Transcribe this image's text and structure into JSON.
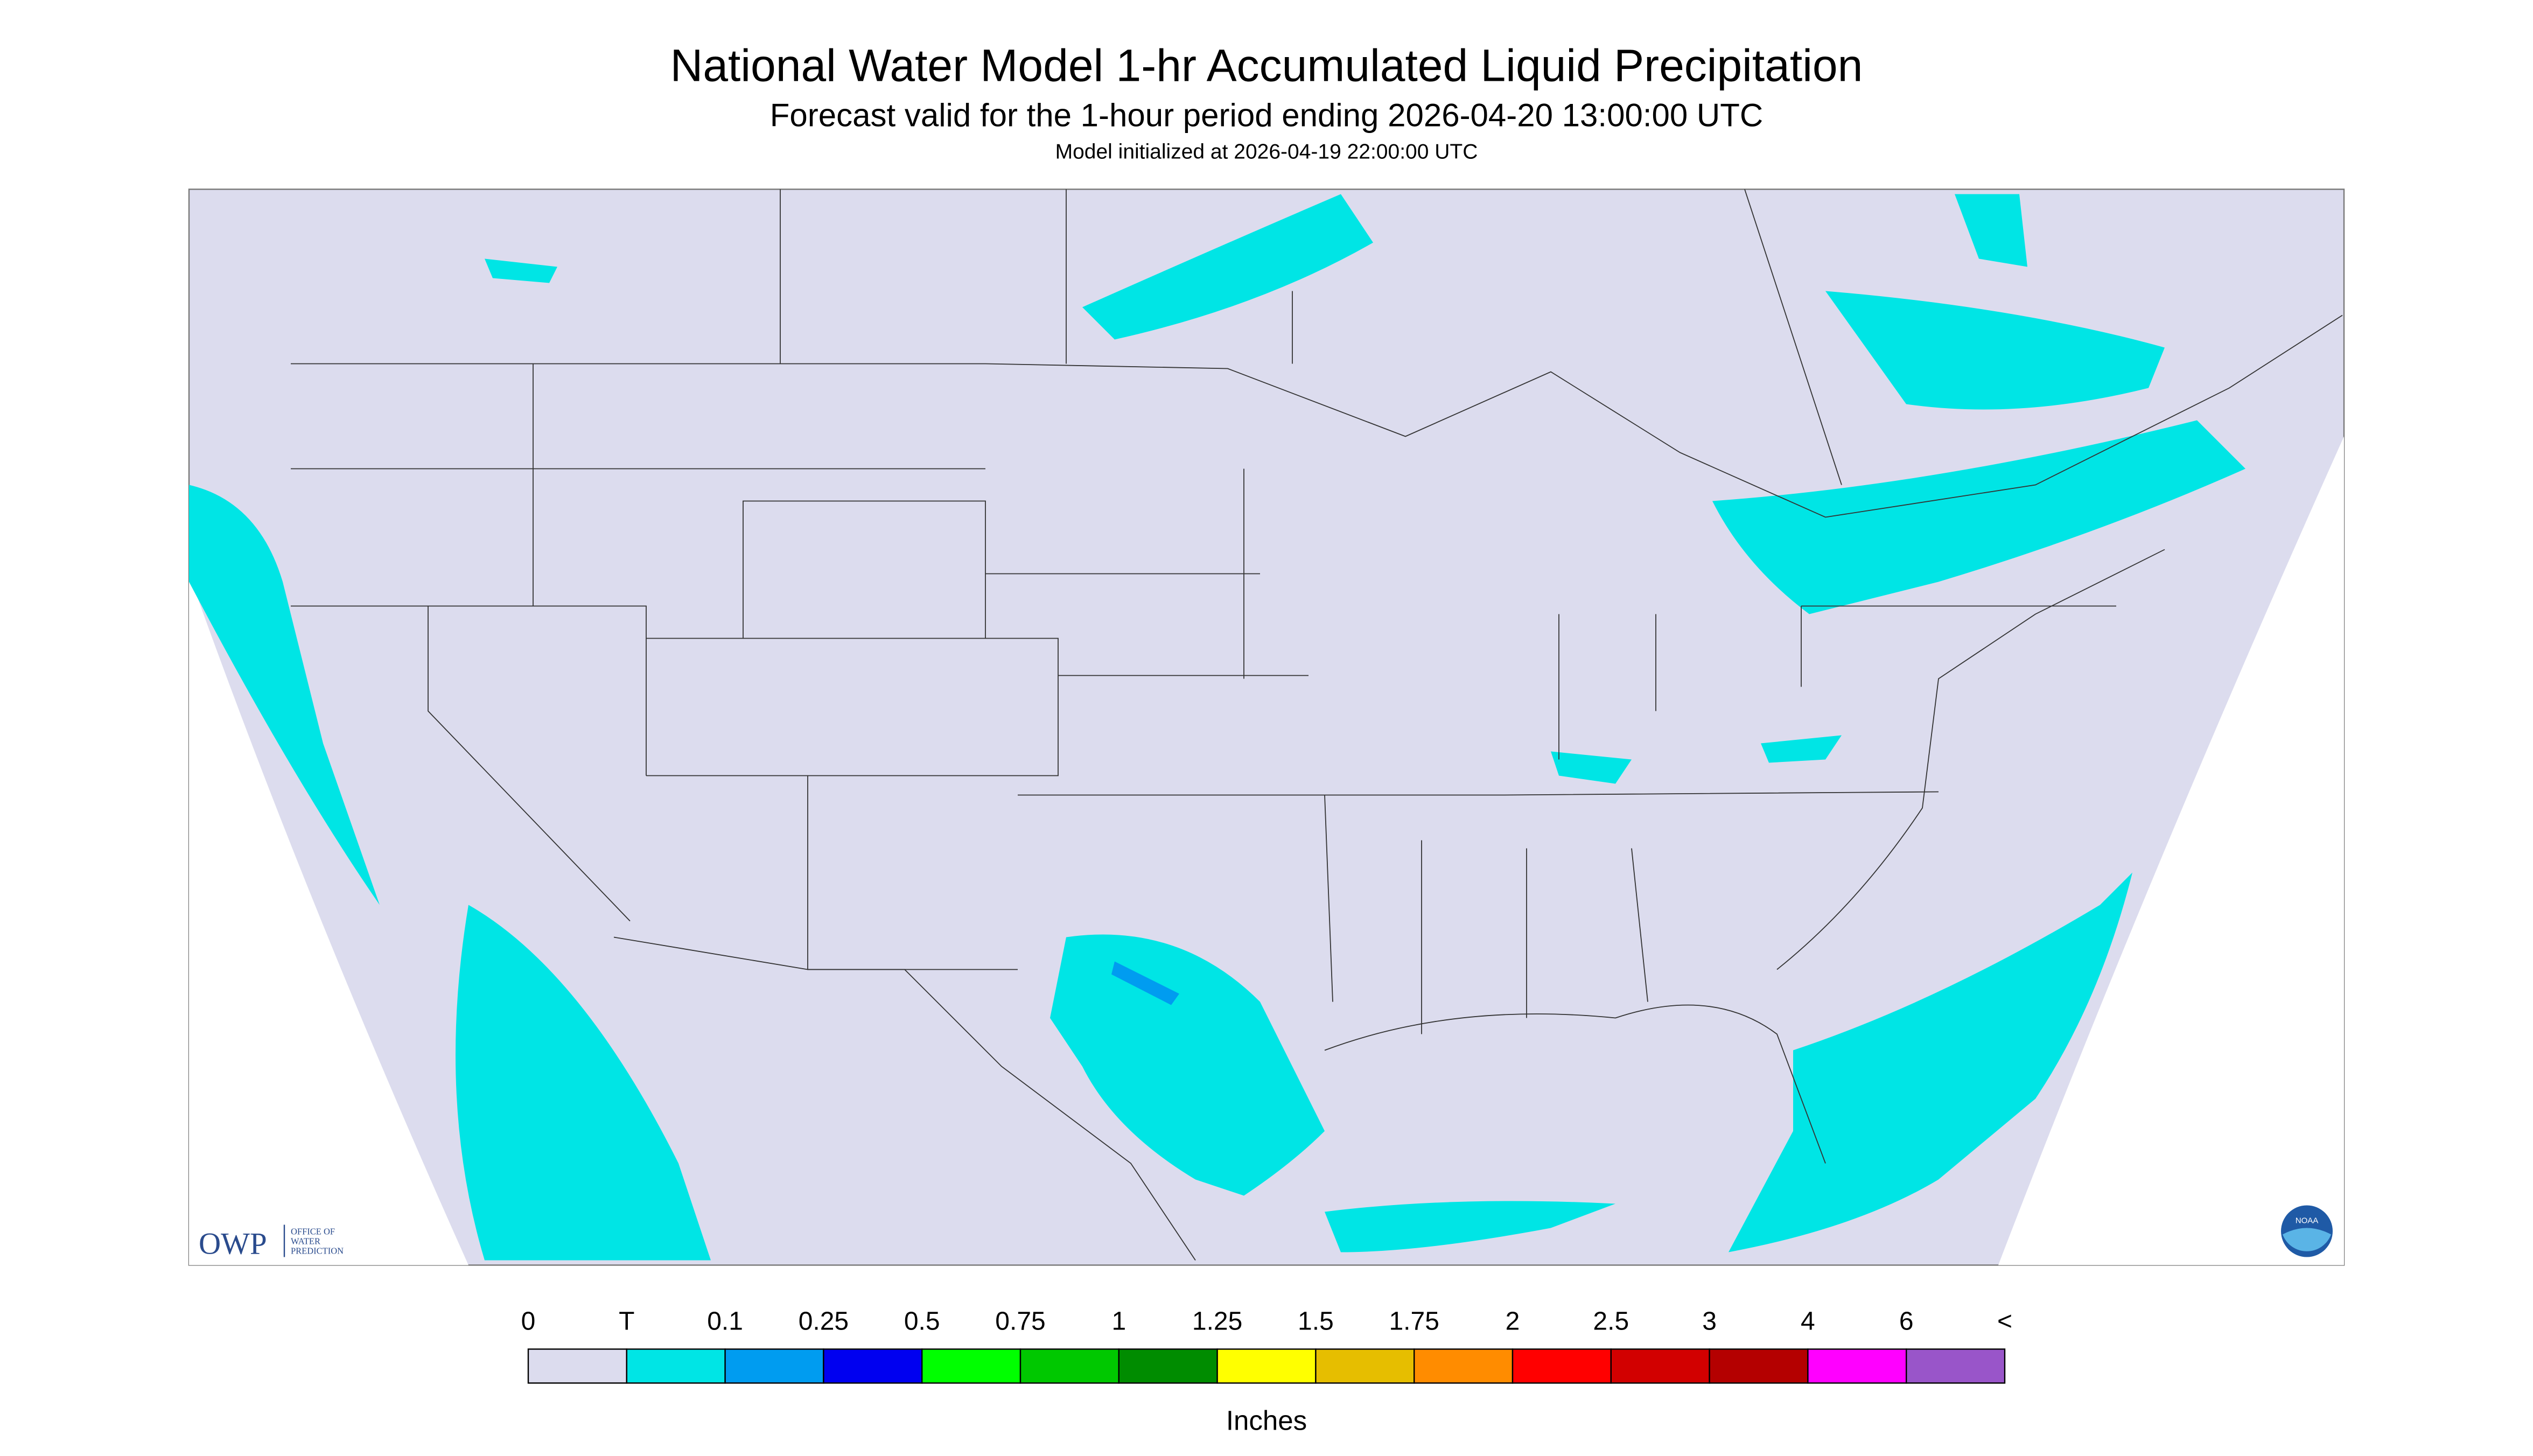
{
  "header": {
    "title": "National Water Model 1-hr Accumulated Liquid Precipitation",
    "subtitle": "Forecast valid for the 1-hour period ending 2026-04-20 13:00:00 UTC",
    "init": "Model initialized at 2026-04-19 22:00:00 UTC"
  },
  "logos": {
    "owp": "OWP",
    "owp_text": [
      "OFFICE OF",
      "WATER",
      "PREDICTION"
    ],
    "noaa": "NOAA"
  },
  "legend": {
    "labels": [
      "0",
      "T",
      "0.1",
      "0.25",
      "0.5",
      "0.75",
      "1",
      "1.25",
      "1.5",
      "1.75",
      "2",
      "2.5",
      "3",
      "4",
      "6",
      "<"
    ],
    "colors": [
      "#dcdcee",
      "#00e5e5",
      "#009cf0",
      "#0000f0",
      "#00ff00",
      "#00c800",
      "#008c00",
      "#ffff00",
      "#e6be00",
      "#ff8c00",
      "#ff0000",
      "#d20000",
      "#b40000",
      "#ff00ff",
      "#9955c9"
    ],
    "unit": "Inches"
  }
}
